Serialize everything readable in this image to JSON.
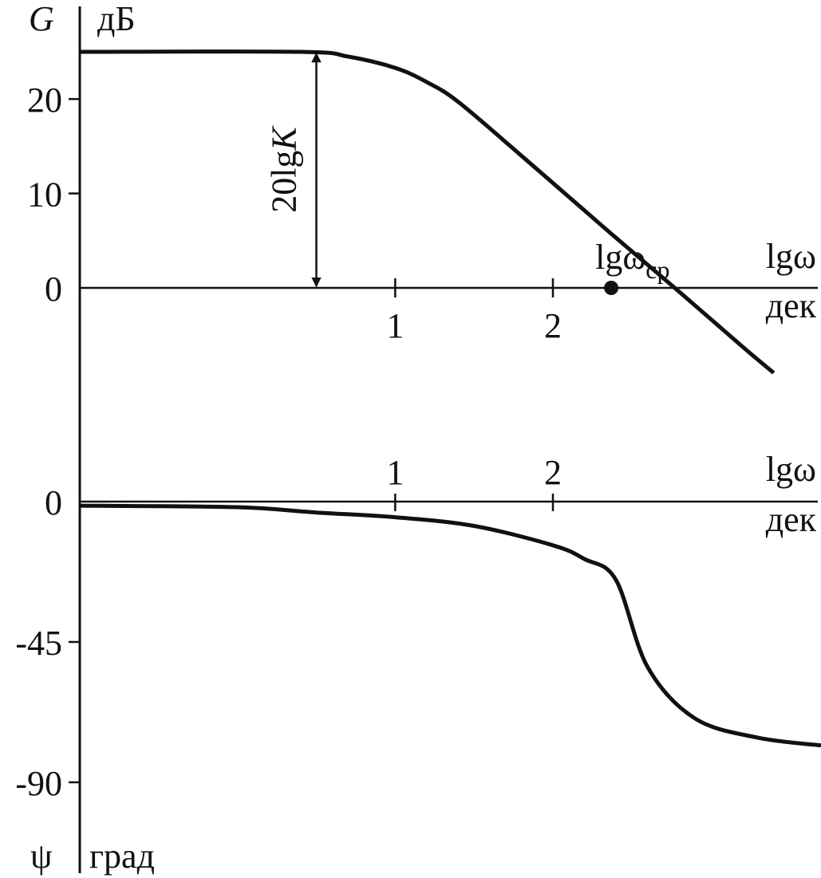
{
  "chart_data": [
    {
      "type": "line",
      "panel": "magnitude",
      "y_symbol": "G",
      "y_unit": "дБ",
      "x_symbol": "lgω",
      "x_unit": "дек",
      "xlim": [
        -1.0,
        3.7
      ],
      "ylim": [
        -15,
        26
      ],
      "x_ticks": [
        1,
        2
      ],
      "y_ticks": [
        20,
        10,
        0
      ],
      "series": [
        {
          "x": [
            -1.0,
            0.4,
            0.7,
            1.0,
            1.2,
            1.4,
            1.8,
            2.2,
            2.4,
            2.8,
            3.2,
            3.4
          ],
          "y": [
            25,
            25,
            24.5,
            23.3,
            21.8,
            19.7,
            14.0,
            8.2,
            5.3,
            -0.4,
            -6.2,
            -9.0
          ]
        }
      ],
      "annotations": {
        "gain_label_prefix": "20lg",
        "gain_label_var": "K",
        "gain_arrow_x": 0.5,
        "gain_arrow_from": 0,
        "gain_arrow_to": 25,
        "crossover_label": "lgω",
        "crossover_sub": "ср",
        "crossover_x": 2.37
      }
    },
    {
      "type": "line",
      "panel": "phase",
      "y_symbol": "ψ",
      "y_unit": "град",
      "x_symbol": "lgω",
      "x_unit": "дек",
      "xlim": [
        -1.0,
        3.7
      ],
      "ylim": [
        -102,
        10
      ],
      "x_ticks": [
        1,
        2
      ],
      "y_ticks": [
        0,
        -45,
        -90
      ],
      "series": [
        {
          "x": [
            -1.0,
            0.0,
            0.5,
            1.0,
            1.5,
            2.0,
            2.2,
            2.4,
            2.6,
            2.9,
            3.3,
            3.7
          ],
          "y": [
            -1.3,
            -1.8,
            -3.5,
            -5.0,
            -7.8,
            -14.0,
            -18.4,
            -25.1,
            -53.0,
            -69.5,
            -75.7,
            -78.2
          ]
        }
      ]
    }
  ]
}
